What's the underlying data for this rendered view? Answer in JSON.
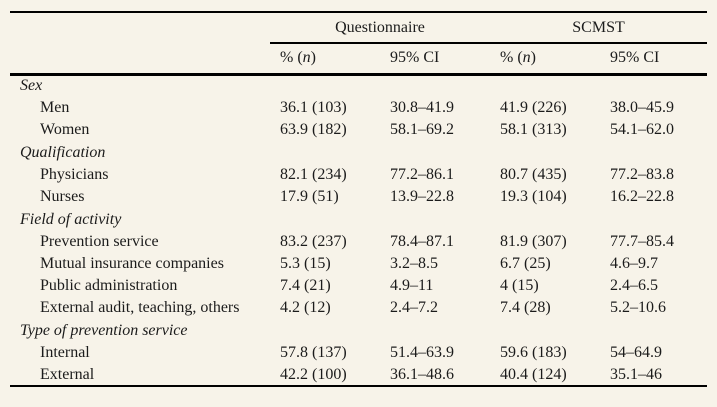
{
  "colors": {
    "background": "#f7f3e9",
    "text": "#1b1b1b",
    "rule": "#000000"
  },
  "table": {
    "groups": [
      {
        "label": "Questionnaire"
      },
      {
        "label": "SCMST"
      }
    ],
    "subheaders": [
      "% (n)",
      "95% CI",
      "% (n)",
      "95% CI"
    ],
    "sections": [
      {
        "label": "Sex",
        "rows": [
          {
            "label": "Men",
            "values": [
              "36.1 (103)",
              "30.8–41.9",
              "41.9 (226)",
              "38.0–45.9"
            ]
          },
          {
            "label": "Women",
            "values": [
              "63.9 (182)",
              "58.1–69.2",
              "58.1 (313)",
              "54.1–62.0"
            ]
          }
        ]
      },
      {
        "label": "Qualification",
        "rows": [
          {
            "label": "Physicians",
            "values": [
              "82.1 (234)",
              "77.2–86.1",
              "80.7 (435)",
              "77.2–83.8"
            ]
          },
          {
            "label": "Nurses",
            "values": [
              "17.9 (51)",
              "13.9–22.8",
              "19.3 (104)",
              "16.2–22.8"
            ]
          }
        ]
      },
      {
        "label": "Field of activity",
        "rows": [
          {
            "label": "Prevention service",
            "values": [
              "83.2 (237)",
              "78.4–87.1",
              "81.9 (307)",
              "77.7–85.4"
            ]
          },
          {
            "label": "Mutual insurance companies",
            "values": [
              "5.3 (15)",
              "3.2–8.5",
              "6.7 (25)",
              "4.6–9.7"
            ]
          },
          {
            "label": "Public administration",
            "values": [
              "7.4 (21)",
              "4.9–11",
              "4 (15)",
              "2.4–6.5"
            ]
          },
          {
            "label": "External audit, teaching, others",
            "values": [
              "4.2 (12)",
              "2.4–7.2",
              "7.4 (28)",
              "5.2–10.6"
            ]
          }
        ]
      },
      {
        "label": "Type of prevention service",
        "rows": [
          {
            "label": "Internal",
            "values": [
              "57.8 (137)",
              "51.4–63.9",
              "59.6 (183)",
              "54–64.9"
            ]
          },
          {
            "label": "External",
            "values": [
              "42.2 (100)",
              "36.1–48.6",
              "40.4 (124)",
              "35.1–46"
            ]
          }
        ]
      }
    ]
  }
}
